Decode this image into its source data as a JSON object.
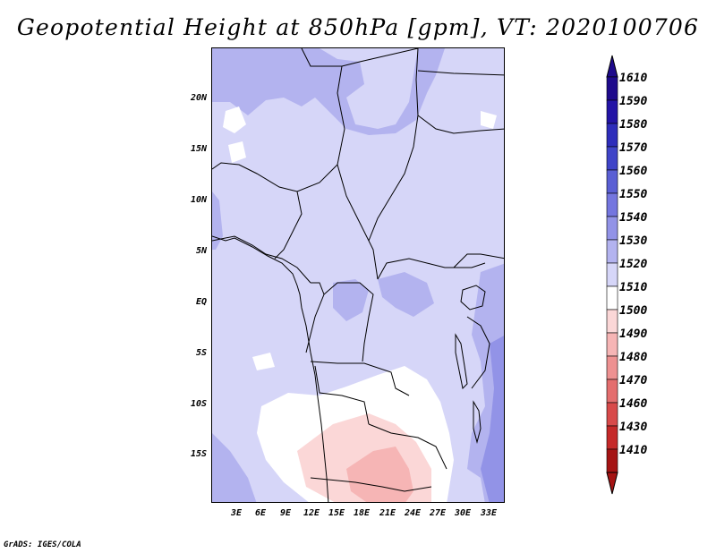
{
  "title": "Geopotential Height at 850hPa [gpm], VT: 2020100706",
  "footer": "GrADS: IGES/COLA",
  "lat_ticks": [
    "20N",
    "15N",
    "10N",
    "5N",
    "EQ",
    "5S",
    "10S",
    "15S"
  ],
  "lon_ticks": [
    "3E",
    "6E",
    "9E",
    "12E",
    "15E",
    "18E",
    "21E",
    "24E",
    "27E",
    "30E",
    "33E"
  ],
  "colorbar": {
    "labels": [
      "1610",
      "1590",
      "1580",
      "1570",
      "1560",
      "1550",
      "1540",
      "1530",
      "1520",
      "1510",
      "1500",
      "1490",
      "1480",
      "1470",
      "1460",
      "1430",
      "1410"
    ],
    "colors": [
      "#1e0a8c",
      "#2314a6",
      "#2e2dbb",
      "#3f44c8",
      "#5a5fd4",
      "#7476df",
      "#9293e7",
      "#b3b3ef",
      "#d6d6f8",
      "#ffffff",
      "#fbd7d7",
      "#f6b5b5",
      "#ee9191",
      "#e46e6e",
      "#d84a4a",
      "#c52929",
      "#a51414"
    ]
  },
  "field_colors": {
    "base": "#d6d6f8",
    "band_1540": "#b3b3ef",
    "band_1550": "#9293e7",
    "band_1560": "#7476df",
    "band_1510": "#ffffff",
    "band_1500": "#fbd7d7",
    "band_1490": "#f6b5b5"
  }
}
